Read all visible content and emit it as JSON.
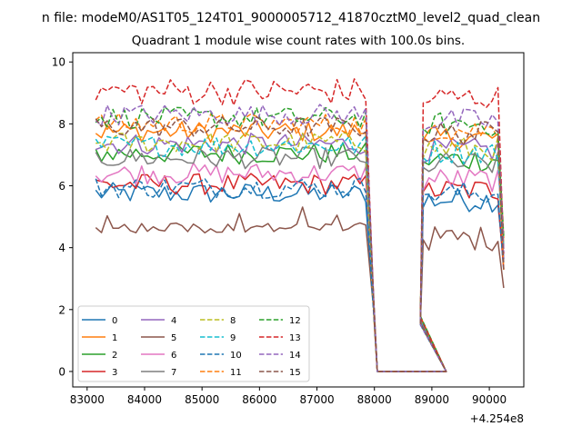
{
  "suptitle": "n file: modeM0/AS1T05_124T01_9000005712_41870cztM0_level2_quad_clean",
  "chart_data": {
    "type": "line",
    "title": "Quadrant 1 module wise count rates with 100.0s bins.",
    "xlabel": "",
    "ylabel": "",
    "x_offset_label": "+4.254e8",
    "xlim": [
      82750,
      90600
    ],
    "ylim": [
      -0.5,
      10.3
    ],
    "x_ticks": [
      83000,
      84000,
      85000,
      86000,
      87000,
      88000,
      89000,
      90000
    ],
    "x_tick_labels": [
      "83000",
      "84000",
      "85000",
      "86000",
      "87000",
      "88000",
      "89000",
      "90000"
    ],
    "y_ticks": [
      0,
      2,
      4,
      6,
      8,
      10
    ],
    "y_tick_labels": [
      "0",
      "2",
      "4",
      "6",
      "8",
      "10"
    ],
    "grid": false,
    "legend_placement": "lower-left",
    "segments": [
      [
        83150,
        87850,
        100
      ],
      [
        88850,
        90250,
        100
      ]
    ],
    "gap": {
      "start": 88050,
      "end": 89250
    },
    "series": [
      {
        "name": "0",
        "color": "#1f77b4",
        "dash": "solid",
        "level": 5.75
      },
      {
        "name": "1",
        "color": "#ff7f0e",
        "dash": "solid",
        "level": 7.75
      },
      {
        "name": "2",
        "color": "#2ca02c",
        "dash": "solid",
        "level": 7.05
      },
      {
        "name": "3",
        "color": "#d62728",
        "dash": "solid",
        "level": 6.05
      },
      {
        "name": "4",
        "color": "#9467bd",
        "dash": "solid",
        "level": 7.35
      },
      {
        "name": "5",
        "color": "#8c564b",
        "dash": "solid",
        "level": 4.65
      },
      {
        "name": "6",
        "color": "#e377c2",
        "dash": "solid",
        "level": 6.4
      },
      {
        "name": "7",
        "color": "#7f7f7f",
        "dash": "solid",
        "level": 6.9
      },
      {
        "name": "8",
        "color": "#bcbd22",
        "dash": "dashed",
        "level": 7.4
      },
      {
        "name": "9",
        "color": "#17becf",
        "dash": "dashed",
        "level": 7.3
      },
      {
        "name": "10",
        "color": "#1f77b4",
        "dash": "dashed",
        "level": 5.95
      },
      {
        "name": "11",
        "color": "#ff7f0e",
        "dash": "dashed",
        "level": 8.0
      },
      {
        "name": "12",
        "color": "#2ca02c",
        "dash": "dashed",
        "level": 8.2
      },
      {
        "name": "13",
        "color": "#d62728",
        "dash": "dashed",
        "level": 9.05
      },
      {
        "name": "14",
        "color": "#9467bd",
        "dash": "dashed",
        "level": 8.3
      },
      {
        "name": "15",
        "color": "#8c564b",
        "dash": "dashed",
        "level": 7.9
      }
    ]
  }
}
